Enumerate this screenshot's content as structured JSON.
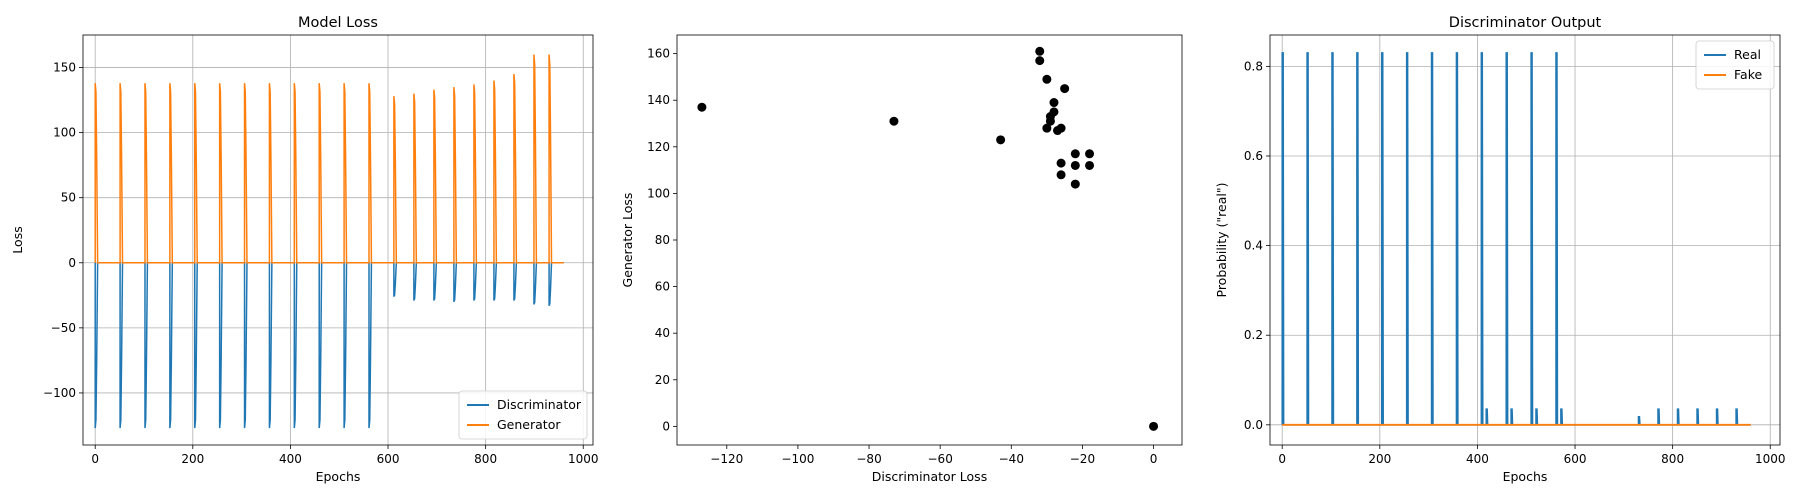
{
  "colors": {
    "discriminator": "#1f77b4",
    "generator": "#ff7f0e",
    "scatter": "#000000",
    "grid": "#b0b0b0"
  },
  "chart_data": [
    {
      "type": "line",
      "title": "Model Loss",
      "xlabel": "Epochs",
      "ylabel": "Loss",
      "xlim": [
        -25,
        1020
      ],
      "ylim": [
        -140,
        175
      ],
      "xticks": [
        0,
        200,
        400,
        600,
        800,
        1000
      ],
      "yticks": [
        -100,
        -50,
        0,
        50,
        100,
        150
      ],
      "grid": true,
      "legend": "bottom-right",
      "event_epochs": [
        0,
        51,
        102,
        153,
        204,
        255,
        306,
        357,
        408,
        459,
        510,
        561,
        612,
        653,
        694,
        735,
        776,
        817,
        858,
        899,
        930
      ],
      "series": [
        {
          "name": "Discriminator",
          "color": "#1f77b4",
          "peak_values": [
            -127,
            -127,
            -127,
            -127,
            -127,
            -127,
            -127,
            -127,
            -127,
            -127,
            -127,
            -127,
            -26,
            -29,
            -29,
            -30,
            -29,
            -29,
            -29,
            -32,
            -33
          ]
        },
        {
          "name": "Generator",
          "color": "#ff7f0e",
          "peak_values": [
            138,
            138,
            138,
            138,
            138,
            138,
            138,
            138,
            138,
            138,
            138,
            138,
            128,
            130,
            133,
            135,
            137,
            140,
            145,
            160,
            160
          ]
        }
      ]
    },
    {
      "type": "scatter",
      "title": "",
      "xlabel": "Discriminator Loss",
      "ylabel": "Generator Loss",
      "xlim": [
        -134,
        8
      ],
      "ylim": [
        -8,
        168
      ],
      "xticks": [
        -120,
        -100,
        -80,
        -60,
        -40,
        -20,
        0
      ],
      "yticks": [
        0,
        20,
        40,
        60,
        80,
        100,
        120,
        140,
        160
      ],
      "grid": false,
      "points": [
        [
          -127,
          137
        ],
        [
          -73,
          131
        ],
        [
          -43,
          123
        ],
        [
          -32,
          161
        ],
        [
          -32,
          157
        ],
        [
          -30,
          149
        ],
        [
          -28,
          139
        ],
        [
          -28,
          135
        ],
        [
          -29,
          133
        ],
        [
          -29,
          131
        ],
        [
          -30,
          128
        ],
        [
          -25,
          145
        ],
        [
          -26,
          128
        ],
        [
          -27,
          127
        ],
        [
          -26,
          113
        ],
        [
          -26,
          108
        ],
        [
          -22,
          117
        ],
        [
          -22,
          112
        ],
        [
          -22,
          104
        ],
        [
          -18,
          117
        ],
        [
          -18,
          112
        ],
        [
          0,
          0
        ]
      ]
    },
    {
      "type": "line",
      "title": "Discriminator Output",
      "xlabel": "Epochs",
      "ylabel": "Probability (\"real\")",
      "xlim": [
        -25,
        1020
      ],
      "ylim": [
        -0.045,
        0.87
      ],
      "xticks": [
        0,
        200,
        400,
        600,
        800,
        1000
      ],
      "yticks": [
        0.0,
        0.2,
        0.4,
        0.6,
        0.8
      ],
      "grid": true,
      "legend": "top-right",
      "series": [
        {
          "name": "Real",
          "color": "#1f77b4",
          "spikes": [
            [
              0,
              0.83
            ],
            [
              51,
              0.83
            ],
            [
              102,
              0.83
            ],
            [
              153,
              0.83
            ],
            [
              204,
              0.83
            ],
            [
              255,
              0.83
            ],
            [
              306,
              0.83
            ],
            [
              357,
              0.83
            ],
            [
              408,
              0.83
            ],
            [
              459,
              0.83
            ],
            [
              510,
              0.83
            ],
            [
              561,
              0.83
            ],
            [
              418,
              0.035
            ],
            [
              469,
              0.035
            ],
            [
              520,
              0.035
            ],
            [
              571,
              0.035
            ],
            [
              730,
              0.018
            ],
            [
              770,
              0.035
            ],
            [
              810,
              0.035
            ],
            [
              850,
              0.035
            ],
            [
              890,
              0.035
            ],
            [
              930,
              0.035
            ]
          ]
        },
        {
          "name": "Fake",
          "color": "#ff7f0e",
          "constant": 0.0,
          "x_end": 960
        }
      ]
    }
  ]
}
